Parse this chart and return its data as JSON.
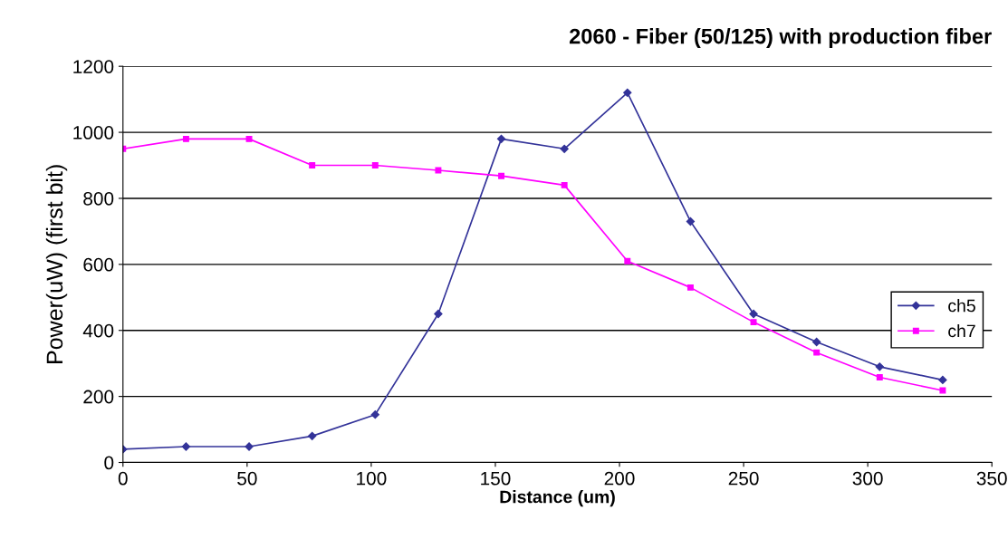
{
  "chart_data": {
    "type": "line",
    "title": "2060 - Fiber (50/125) with production fiber",
    "xlabel": "Distance (um)",
    "ylabel": "Power(uW) (first bit)",
    "x": [
      0,
      25.4,
      50.8,
      76.2,
      101.6,
      127,
      152.4,
      177.8,
      203.2,
      228.6,
      254,
      279.4,
      304.8,
      330.2
    ],
    "series": [
      {
        "name": "ch5",
        "color": "#333399",
        "marker": "diamond",
        "values": [
          40,
          48,
          48,
          80,
          145,
          450,
          980,
          950,
          1120,
          730,
          450,
          365,
          290,
          250
        ]
      },
      {
        "name": "ch7",
        "color": "#ff00ff",
        "marker": "square",
        "values": [
          950,
          980,
          980,
          900,
          900,
          885,
          868,
          840,
          610,
          530,
          425,
          333,
          258,
          218
        ]
      }
    ],
    "xlim": [
      0,
      350
    ],
    "xticks": [
      0,
      50,
      100,
      150,
      200,
      250,
      300,
      350
    ],
    "ylim": [
      0,
      1200
    ],
    "yticks": [
      0,
      200,
      400,
      600,
      800,
      1000,
      1200
    ],
    "grid": "y",
    "legend": "right",
    "line_style": "solid"
  }
}
